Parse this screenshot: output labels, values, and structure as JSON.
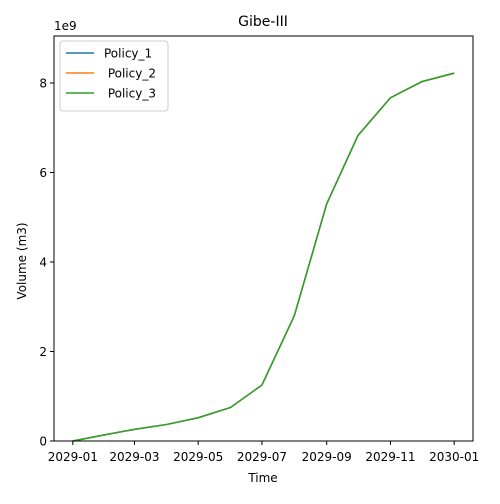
{
  "chart_data": {
    "type": "line",
    "title": "Gibe-III",
    "xlabel": "Time",
    "ylabel": "Volume (m3)",
    "y_offset_label": "1e9",
    "y_scale_factor": 1000000000,
    "x": [
      "2029-01-01",
      "2029-02-01",
      "2029-03-01",
      "2029-04-01",
      "2029-05-01",
      "2029-06-01",
      "2029-07-01",
      "2029-08-01",
      "2029-09-01",
      "2029-10-01",
      "2029-11-01",
      "2029-12-01",
      "2030-01-01"
    ],
    "xlim": [
      "2028-12-14",
      "2030-01-19"
    ],
    "ylim": [
      0,
      9050000000
    ],
    "x_ticks": [
      "2029-01-01",
      "2029-03-01",
      "2029-05-01",
      "2029-07-01",
      "2029-09-01",
      "2029-11-01",
      "2030-01-01"
    ],
    "x_tick_labels": [
      "2029-01",
      "2029-03",
      "2029-05",
      "2029-07",
      "2029-09",
      "2029-11",
      "2030-01"
    ],
    "y_ticks": [
      0,
      2000000000,
      4000000000,
      6000000000,
      8000000000
    ],
    "y_tick_labels": [
      "0",
      "2",
      "4",
      "6",
      "8"
    ],
    "grid": false,
    "legend_position": "top-left",
    "series": [
      {
        "name": "Policy_1",
        "color": "#1f77b4",
        "values": [
          0,
          140000000,
          260000000,
          370000000,
          520000000,
          750000000,
          1250000000,
          2800000000,
          5300000000,
          6830000000,
          7670000000,
          8030000000,
          8220000000
        ]
      },
      {
        "name": " Policy_2",
        "color": "#ff7f0e",
        "values": [
          0,
          140000000,
          260000000,
          370000000,
          520000000,
          750000000,
          1250000000,
          2800000000,
          5300000000,
          6830000000,
          7670000000,
          8030000000,
          8220000000
        ]
      },
      {
        "name": " Policy_3",
        "color": "#2ca02c",
        "values": [
          0,
          140000000,
          260000000,
          370000000,
          520000000,
          750000000,
          1250000000,
          2800000000,
          5300000000,
          6830000000,
          7670000000,
          8030000000,
          8220000000
        ]
      }
    ]
  }
}
